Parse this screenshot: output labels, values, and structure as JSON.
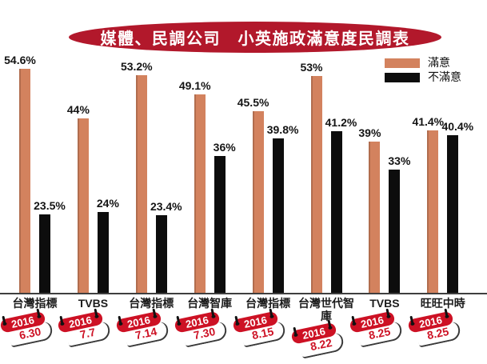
{
  "header": {
    "title": "媒體、民調公司　小英施政滿意度民調表",
    "banner_color": "#b2182b",
    "title_color": "#ffffff"
  },
  "legend": {
    "items": [
      {
        "label": "滿意",
        "color": "#d3825e"
      },
      {
        "label": "不滿意",
        "color": "#0d0d0d"
      }
    ]
  },
  "chart_data": {
    "type": "bar",
    "title": "媒體、民調公司 小英施政滿意度民調表",
    "value_unit": "%",
    "grid": false,
    "legend_position": "top-right",
    "baseline_color": "#3f3f3f",
    "categories": [
      "台灣指標",
      "TVBS",
      "台灣指標",
      "台灣智庫",
      "台灣指標",
      "台灣世代智庫",
      "TVBS",
      "旺旺中時"
    ],
    "series": [
      {
        "name": "滿意",
        "color": "#d3825e",
        "values": [
          54.6,
          44,
          53.2,
          49.1,
          45.5,
          53,
          39,
          41.4
        ]
      },
      {
        "name": "不滿意",
        "color": "#0d0d0d",
        "values": [
          23.5,
          24,
          23.4,
          36,
          39.8,
          41.2,
          33,
          40.4
        ]
      }
    ],
    "value_labels": [
      [
        "54.6%",
        "44%",
        "53.2%",
        "49.1%",
        "45.5%",
        "53%",
        "39%",
        "41.4%"
      ],
      [
        "23.5%",
        "24%",
        "23.4%",
        "36%",
        "39.8%",
        "41.2%",
        "33%",
        "40.4%"
      ]
    ],
    "dates": [
      {
        "year": "2016",
        "day": "6.30"
      },
      {
        "year": "2016",
        "day": "7.7"
      },
      {
        "year": "2016",
        "day": "7.14"
      },
      {
        "year": "2016",
        "day": "7.30"
      },
      {
        "year": "2016",
        "day": "8.15"
      },
      {
        "year": "2016",
        "day": "8.22"
      },
      {
        "year": "2016",
        "day": "8.25"
      },
      {
        "year": "2016",
        "day": "8.25"
      }
    ],
    "date_tag_colors": {
      "band": "#cd1124",
      "year_text": "#ffffff",
      "day_text": "#cd1124"
    }
  }
}
